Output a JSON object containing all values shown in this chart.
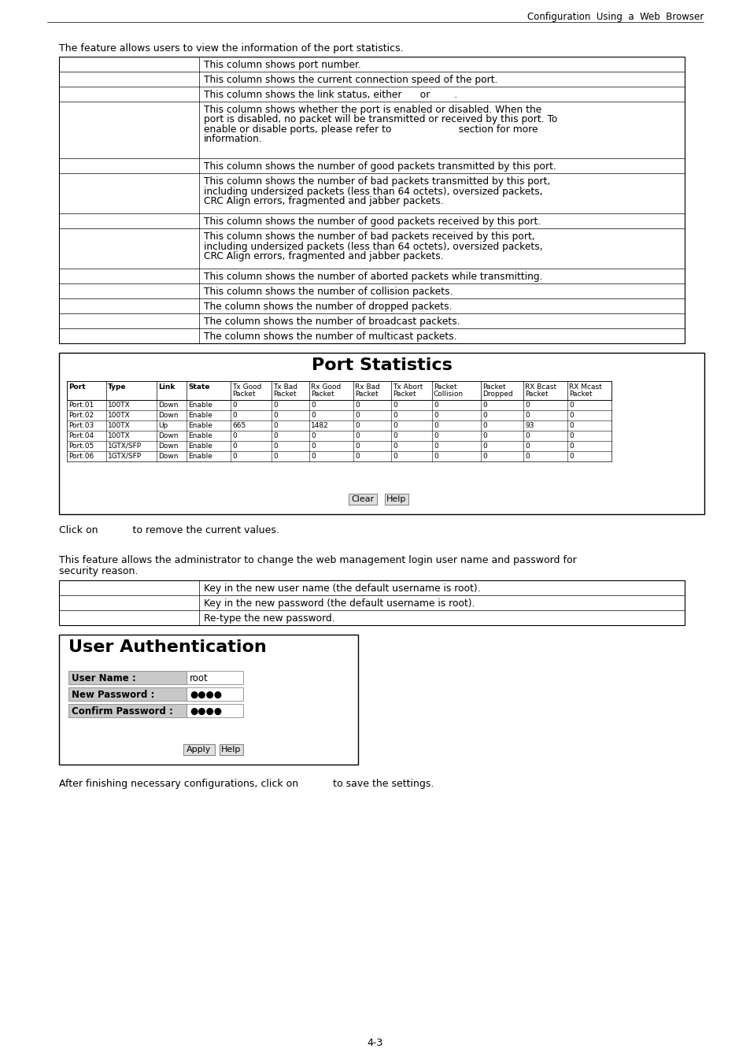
{
  "header_text": "Configuration  Using  a  Web  Browser",
  "intro_text1": "The feature allows users to view the information of the port statistics.",
  "table1_rows": [
    "This column shows port number.",
    "This column shows the current connection speed of the port.",
    "This column shows the link status, either      or        .",
    "This column shows whether the port is enabled or disabled. When the\nport is disabled, no packet will be transmitted or received by this port. To\nenable or disable ports, please refer to                      section for more\ninformation.",
    "This column shows the number of good packets transmitted by this port.",
    "This column shows the number of bad packets transmitted by this port,\nincluding undersized packets (less than 64 octets), oversized packets,\nCRC Align errors, fragmented and jabber packets.",
    "This column shows the number of good packets received by this port.",
    "This column shows the number of bad packets received by this port,\nincluding undersized packets (less than 64 octets), oversized packets,\nCRC Align errors, fragmented and jabber packets.",
    "This column shows the number of aborted packets while transmitting.",
    "This column shows the number of collision packets.",
    "The column shows the number of dropped packets.",
    "The column shows the number of broadcast packets.",
    "The column shows the number of multicast packets."
  ],
  "port_stats_title": "Port Statistics",
  "port_stats_headers_line1": [
    "Port",
    "Type",
    "Link",
    "State",
    "Tx Good",
    "Tx Bad",
    "Rx Good",
    "Rx Bad",
    "Tx Abort",
    "Packet",
    "Packet",
    "RX Bcast",
    "RX Mcast"
  ],
  "port_stats_headers_line2": [
    "",
    "",
    "",
    "",
    "Packet",
    "Packet",
    "Packet",
    "Packet",
    "Packet",
    "Collision",
    "Dropped",
    "Packet",
    "Packet"
  ],
  "port_stats_data": [
    [
      "Port.01",
      "100TX",
      "Down",
      "Enable",
      "0",
      "0",
      "0",
      "0",
      "0",
      "0",
      "0",
      "0",
      "0"
    ],
    [
      "Port.02",
      "100TX",
      "Down",
      "Enable",
      "0",
      "0",
      "0",
      "0",
      "0",
      "0",
      "0",
      "0",
      "0"
    ],
    [
      "Port.03",
      "100TX",
      "Up",
      "Enable",
      "665",
      "0",
      "1482",
      "0",
      "0",
      "0",
      "0",
      "93",
      "0"
    ],
    [
      "Port.04",
      "100TX",
      "Down",
      "Enable",
      "0",
      "0",
      "0",
      "0",
      "0",
      "0",
      "0",
      "0",
      "0"
    ],
    [
      "Port.05",
      "1GTX/SFP",
      "Down",
      "Enable",
      "0",
      "0",
      "0",
      "0",
      "0",
      "0",
      "0",
      "0",
      "0"
    ],
    [
      "Port.06",
      "1GTX/SFP",
      "Down",
      "Enable",
      "0",
      "0",
      "0",
      "0",
      "0",
      "0",
      "0",
      "0",
      "0"
    ]
  ],
  "click_text": "Click on           to remove the current values.",
  "intro_text2_line1": "This feature allows the administrator to change the web management login user name and password for",
  "intro_text2_line2": "security reason.",
  "table2_rows": [
    "Key in the new user name (the default username is root).",
    "Key in the new password (the default username is root).",
    "Re-type the new password."
  ],
  "user_auth_title": "User Authentication",
  "user_auth_fields": [
    [
      "User Name :",
      "root"
    ],
    [
      "New Password :",
      "●●●●"
    ],
    [
      "Confirm Password :",
      "●●●●"
    ]
  ],
  "after_text": "After finishing necessary configurations, click on           to save the settings.",
  "page_num": "4-3",
  "bg_color": "#ffffff"
}
